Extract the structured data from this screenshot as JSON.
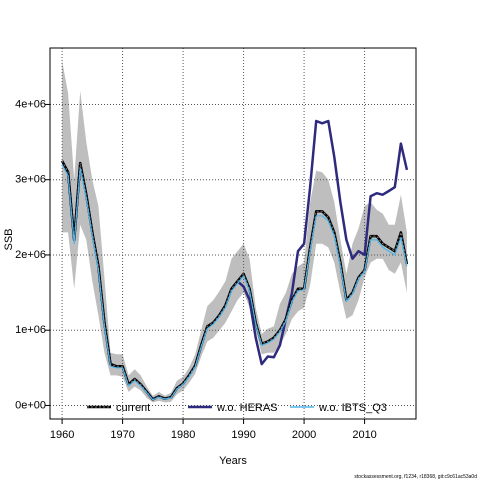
{
  "chart_data": {
    "type": "line",
    "xlabel": "Years",
    "ylabel": "SSB",
    "xlim": [
      1958,
      2018.5
    ],
    "ylim": [
      -180000,
      4750000
    ],
    "xticks": [
      1960,
      1970,
      1980,
      1990,
      2000,
      2010
    ],
    "yticks": [
      0,
      1000000,
      2000000,
      3000000,
      4000000
    ],
    "ytick_labels": [
      "0e+00",
      "1e+06",
      "2e+06",
      "3e+06",
      "4e+06"
    ],
    "grid": true,
    "legend_position": "bottom",
    "band": {
      "x": [
        1960,
        1961,
        1962,
        1963,
        1964,
        1965,
        1966,
        1967,
        1968,
        1969,
        1970,
        1971,
        1972,
        1973,
        1974,
        1975,
        1976,
        1977,
        1978,
        1979,
        1980,
        1981,
        1982,
        1983,
        1984,
        1985,
        1986,
        1987,
        1988,
        1989,
        1990,
        1991,
        1992,
        1993,
        1994,
        1995,
        1996,
        1997,
        1998,
        1999,
        2000,
        2001,
        2002,
        2003,
        2004,
        2005,
        2006,
        2007,
        2008,
        2009,
        2010,
        2011,
        2012,
        2013,
        2014,
        2015,
        2016,
        2017
      ],
      "lower": [
        2300000,
        2300000,
        1550000,
        2400000,
        2200000,
        1650000,
        1200000,
        700000,
        400000,
        400000,
        380000,
        180000,
        250000,
        200000,
        100000,
        40000,
        60000,
        40000,
        50000,
        150000,
        200000,
        300000,
        420000,
        650000,
        850000,
        900000,
        1000000,
        1100000,
        1250000,
        1400000,
        1500000,
        1300000,
        1000000,
        680000,
        700000,
        700000,
        800000,
        950000,
        1150000,
        1250000,
        1300000,
        1600000,
        2150000,
        2150000,
        2100000,
        1900000,
        1500000,
        1150000,
        1200000,
        1400000,
        1700000,
        1900000,
        1950000,
        1950000,
        1800000,
        1750000,
        1900000,
        1500000
      ],
      "upper": [
        4580000,
        4150000,
        3000000,
        4180000,
        3500000,
        3000000,
        2650000,
        1700000,
        700000,
        680000,
        680000,
        400000,
        480000,
        400000,
        250000,
        130000,
        180000,
        130000,
        170000,
        330000,
        380000,
        500000,
        680000,
        1000000,
        1320000,
        1400000,
        1520000,
        1650000,
        1950000,
        2050000,
        2150000,
        1950000,
        1300000,
        950000,
        1020000,
        1050000,
        1350000,
        1500000,
        1750000,
        1850000,
        1900000,
        2700000,
        3120000,
        3100000,
        3000000,
        2700000,
        2200000,
        1750000,
        2150000,
        2350000,
        2650000,
        2700000,
        2600000,
        2550000,
        2400000,
        2400000,
        2800000,
        2300000
      ]
    },
    "series": [
      {
        "name": "current",
        "color": "#000000",
        "x": [
          1960,
          1961,
          1962,
          1963,
          1964,
          1965,
          1966,
          1967,
          1968,
          1969,
          1970,
          1971,
          1972,
          1973,
          1974,
          1975,
          1976,
          1977,
          1978,
          1979,
          1980,
          1981,
          1982,
          1983,
          1984,
          1985,
          1986,
          1987,
          1988,
          1989,
          1990,
          1991,
          1992,
          1993,
          1994,
          1995,
          1996,
          1997,
          1998,
          1999,
          2000,
          2001,
          2002,
          2003,
          2004,
          2005,
          2006,
          2007,
          2008,
          2009,
          2010,
          2011,
          2012,
          2013,
          2014,
          2015,
          2016,
          2017
        ],
        "y": [
          3250000,
          3100000,
          2200000,
          3220000,
          2800000,
          2300000,
          1850000,
          1100000,
          550000,
          520000,
          520000,
          280000,
          350000,
          280000,
          180000,
          80000,
          120000,
          90000,
          110000,
          230000,
          290000,
          400000,
          530000,
          800000,
          1050000,
          1100000,
          1200000,
          1330000,
          1550000,
          1650000,
          1750000,
          1550000,
          1100000,
          820000,
          850000,
          900000,
          1000000,
          1150000,
          1400000,
          1550000,
          1550000,
          2100000,
          2580000,
          2580000,
          2500000,
          2300000,
          1900000,
          1400000,
          1500000,
          1700000,
          1800000,
          2250000,
          2250000,
          2150000,
          2100000,
          2050000,
          2300000,
          1880000
        ]
      },
      {
        "name": "w.o. HERAS",
        "color": "#2e2a7e",
        "x": [
          1960,
          1961,
          1962,
          1963,
          1964,
          1965,
          1966,
          1967,
          1968,
          1969,
          1970,
          1971,
          1972,
          1973,
          1974,
          1975,
          1976,
          1977,
          1978,
          1979,
          1980,
          1981,
          1982,
          1983,
          1984,
          1985,
          1986,
          1987,
          1988,
          1989,
          1990,
          1991,
          1992,
          1993,
          1994,
          1995,
          1996,
          1997,
          1998,
          1999,
          2000,
          2001,
          2002,
          2003,
          2004,
          2005,
          2006,
          2007,
          2008,
          2009,
          2010,
          2011,
          2012,
          2013,
          2014,
          2015,
          2016,
          2017
        ],
        "y": [
          3250000,
          3100000,
          2200000,
          3220000,
          2800000,
          2300000,
          1850000,
          1100000,
          550000,
          520000,
          520000,
          280000,
          350000,
          280000,
          180000,
          80000,
          120000,
          90000,
          110000,
          230000,
          290000,
          400000,
          530000,
          800000,
          1050000,
          1100000,
          1200000,
          1330000,
          1550000,
          1650000,
          1580000,
          1400000,
          900000,
          550000,
          650000,
          640000,
          800000,
          1150000,
          1500000,
          2050000,
          2150000,
          2900000,
          3780000,
          3750000,
          3780000,
          3300000,
          2700000,
          2200000,
          1950000,
          2050000,
          2000000,
          2780000,
          2820000,
          2800000,
          2850000,
          2900000,
          3480000,
          3130000
        ]
      },
      {
        "name": "w.o. IBTS_Q3",
        "color": "#4fb5ea",
        "x": [
          1960,
          1961,
          1962,
          1963,
          1964,
          1965,
          1966,
          1967,
          1968,
          1969,
          1970,
          1971,
          1972,
          1973,
          1974,
          1975,
          1976,
          1977,
          1978,
          1979,
          1980,
          1981,
          1982,
          1983,
          1984,
          1985,
          1986,
          1987,
          1988,
          1989,
          1990,
          1991,
          1992,
          1993,
          1994,
          1995,
          1996,
          1997,
          1998,
          1999,
          2000,
          2001,
          2002,
          2003,
          2004,
          2005,
          2006,
          2007,
          2008,
          2009,
          2010,
          2011,
          2012,
          2013,
          2014,
          2015,
          2016,
          2017
        ],
        "y": [
          3200000,
          3050000,
          2150000,
          3150000,
          2750000,
          2250000,
          1800000,
          1050000,
          520000,
          500000,
          500000,
          260000,
          330000,
          260000,
          170000,
          75000,
          110000,
          85000,
          100000,
          220000,
          280000,
          380000,
          510000,
          780000,
          1020000,
          1080000,
          1180000,
          1300000,
          1520000,
          1620000,
          1720000,
          1520000,
          1080000,
          800000,
          830000,
          880000,
          980000,
          1120000,
          1380000,
          1520000,
          1540000,
          2050000,
          2520000,
          2520000,
          2450000,
          2250000,
          1850000,
          1380000,
          1480000,
          1680000,
          1780000,
          2200000,
          2200000,
          2100000,
          2050000,
          2000000,
          2230000,
          1850000
        ]
      }
    ],
    "footer": "stockassessment.org, f1234, r18368, git:c9c61ac53a0d"
  }
}
